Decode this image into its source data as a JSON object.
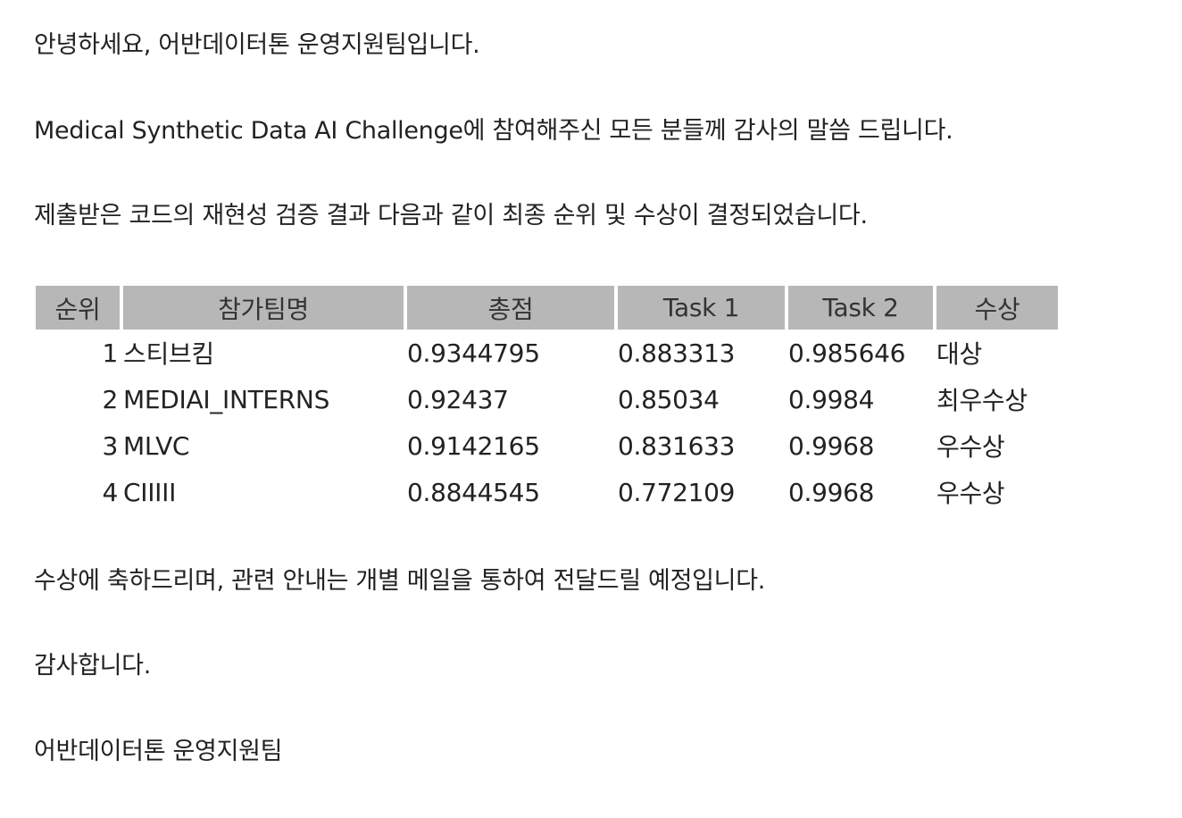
{
  "message": {
    "greeting": "안녕하세요, 어반데이터톤 운영지원팀입니다.",
    "thanks": "Medical Synthetic Data AI Challenge에 참여해주신 모든 분들께 감사의 말씀 드립니다.",
    "result_intro": "제출받은 코드의 재현성 검증 결과 다음과 같이 최종 순위 및 수상이 결정되었습니다.",
    "congrats": "수상에 축하드리며, 관련 안내는 개별 메일을 통하여 전달드릴 예정입니다.",
    "closing": "감사합니다.",
    "signature": "어반데이터톤 운영지원팀"
  },
  "table": {
    "headers": [
      "순위",
      "참가팀명",
      "총점",
      "Task 1",
      "Task 2",
      "수상"
    ],
    "rows": [
      [
        "1",
        "스티브킴",
        "0.9344795",
        "0.883313",
        "0.985646",
        "대상"
      ],
      [
        "2",
        "MEDIAI_INTERNS",
        "0.92437",
        "0.85034",
        "0.9984",
        "최우수상"
      ],
      [
        "3",
        "MLVC",
        "0.9142165",
        "0.831633",
        "0.9968",
        "우수상"
      ],
      [
        "4",
        "CIIIII",
        "0.8844545",
        "0.772109",
        "0.9968",
        "우수상"
      ]
    ]
  }
}
